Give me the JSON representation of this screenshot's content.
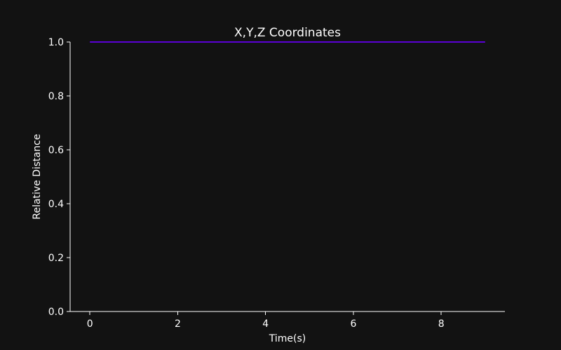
{
  "chart_data": {
    "type": "line",
    "title": "X,Y,Z Coordinates",
    "xlabel": "Time(s)",
    "ylabel": "Relative Distance",
    "xlim": [
      -0.45,
      9.45
    ],
    "ylim": [
      0.0,
      1.0
    ],
    "xticks": [
      0,
      2,
      4,
      6,
      8
    ],
    "xtick_labels": [
      "0",
      "2",
      "4",
      "6",
      "8"
    ],
    "yticks": [
      0.0,
      0.2,
      0.4,
      0.6,
      0.8,
      1.0
    ],
    "ytick_labels": [
      "0.0",
      "0.2",
      "0.4",
      "0.6",
      "0.8",
      "1.0"
    ],
    "grid": false,
    "series": [
      {
        "x": [
          0,
          1,
          2,
          3,
          4,
          5,
          6,
          7,
          8,
          9
        ],
        "values": [
          1.0,
          1.0,
          1.0,
          1.0,
          1.0,
          1.0,
          1.0,
          1.0,
          1.0,
          1.0
        ],
        "color": "#5a00d6"
      }
    ]
  },
  "colors": {
    "background": "#121212",
    "foreground": "#ffffff"
  }
}
